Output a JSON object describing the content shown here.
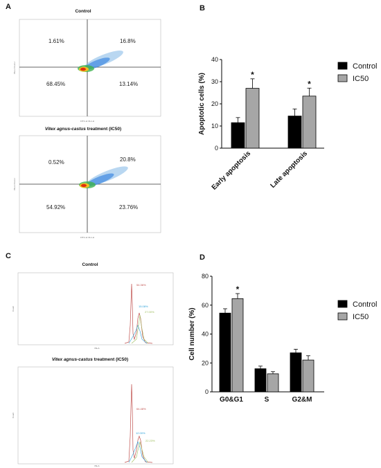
{
  "panels": {
    "a": {
      "letter": "A"
    },
    "b": {
      "letter": "B"
    },
    "c": {
      "letter": "C"
    },
    "d": {
      "letter": "D"
    }
  },
  "flow_plots": [
    {
      "title": "Control",
      "quadrants": {
        "upper_left": "1.61%",
        "upper_right": "16.8%",
        "lower_left": "68.45%",
        "lower_right": "13.14%"
      },
      "x_axis_label": "FITC-H::FL1-H",
      "y_axis_label": "PE-H::FL2-H"
    },
    {
      "title_italic": "Vitex agnus-castus",
      "title_rest": " treatment (IC50)",
      "quadrants": {
        "upper_left": "0.52%",
        "upper_right": "20.8%",
        "lower_left": "54.92%",
        "lower_right": "23.76%"
      },
      "x_axis_label": "FITC-H::FL1-H",
      "y_axis_label": "PE-H::FL2-H"
    }
  ],
  "histograms": [
    {
      "title": "Control",
      "peaks": {
        "g0g1": "54.36%",
        "s": "15.08%",
        "g2m": "27.00%"
      },
      "y_axis_label": "Count",
      "x_axis_label": "PE-A"
    },
    {
      "title_italic": "Vitex agnus-castus",
      "title_rest": " treatment (IC50)",
      "peaks": {
        "g0g1": "64.48%",
        "s": "12.00%",
        "g2m": "22.23%"
      },
      "y_axis_label": "Count",
      "x_axis_label": "PE-A"
    }
  ],
  "chart_data": [
    {
      "type": "bar",
      "panel": "B",
      "categories": [
        "Early apoptosis",
        "Late apoptosis"
      ],
      "series": [
        {
          "name": "Control",
          "values": [
            11.5,
            14.5
          ],
          "errors": [
            2.3,
            3.2
          ],
          "color": "#000000"
        },
        {
          "name": "IC50",
          "values": [
            27.0,
            23.5
          ],
          "errors": [
            4.3,
            3.6
          ],
          "color": "#a6a6a6"
        }
      ],
      "significance": [
        {
          "category": 0,
          "series": 1,
          "mark": "*"
        },
        {
          "category": 1,
          "series": 1,
          "mark": "*"
        }
      ],
      "ylabel": "Apoptotic cells (%)",
      "ylim": [
        0,
        40
      ],
      "yticks": [
        0,
        10,
        20,
        30,
        40
      ],
      "legend_position": "right",
      "grid": false
    },
    {
      "type": "bar",
      "panel": "D",
      "categories": [
        "G0&G1",
        "S",
        "G2&M"
      ],
      "series": [
        {
          "name": "Control",
          "values": [
            54.5,
            16.0,
            27.0
          ],
          "errors": [
            3.0,
            1.8,
            2.5
          ],
          "color": "#000000"
        },
        {
          "name": "IC50",
          "values": [
            64.5,
            12.5,
            22.0
          ],
          "errors": [
            3.5,
            1.5,
            3.0
          ],
          "color": "#a6a6a6"
        }
      ],
      "significance": [
        {
          "category": 0,
          "series": 1,
          "mark": "*"
        }
      ],
      "ylabel": "Cell number (%)",
      "ylim": [
        0,
        80
      ],
      "yticks": [
        0,
        20,
        40,
        60,
        80
      ],
      "legend_position": "right",
      "grid": false
    }
  ]
}
